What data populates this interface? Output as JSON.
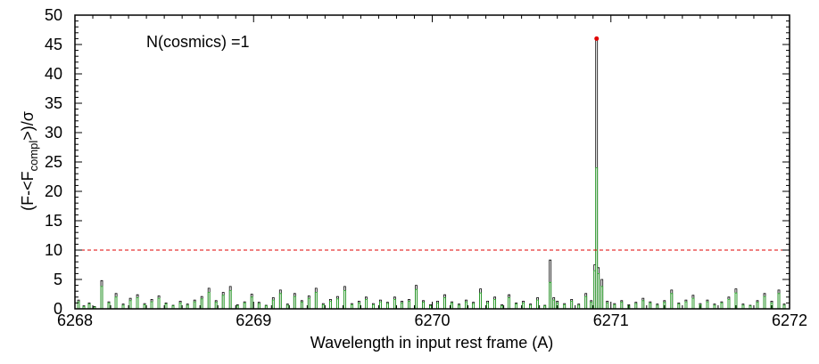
{
  "chart_data": {
    "type": "line",
    "xlabel": "Wavelength in input rest frame (A)",
    "ylabel": "(F-<Fcompl>)/σ",
    "ylabel_parts": {
      "main": "(F-<F",
      "sub": "compl",
      "tail": ">)/σ"
    },
    "xlim": [
      6268,
      6272
    ],
    "ylim": [
      0,
      50
    ],
    "x_ticks": [
      "6268",
      "6269",
      "6270",
      "6271",
      "6272"
    ],
    "y_ticks": [
      "0",
      "5",
      "10",
      "15",
      "20",
      "25",
      "30",
      "35",
      "40",
      "45",
      "50"
    ],
    "annotation": "N(cosmics) =1",
    "threshold": 10,
    "cosmic_point": {
      "x": 6270.92,
      "y": 46
    },
    "series": [
      {
        "color": "#000000",
        "step_width": 0.01,
        "x": [
          6268.02,
          6268.05,
          6268.08,
          6268.11,
          6268.15,
          6268.19,
          6268.23,
          6268.27,
          6268.31,
          6268.35,
          6268.39,
          6268.43,
          6268.47,
          6268.51,
          6268.55,
          6268.59,
          6268.63,
          6268.67,
          6268.71,
          6268.75,
          6268.79,
          6268.83,
          6268.87,
          6268.91,
          6268.95,
          6268.99,
          6269.03,
          6269.07,
          6269.11,
          6269.15,
          6269.19,
          6269.23,
          6269.27,
          6269.31,
          6269.35,
          6269.39,
          6269.43,
          6269.47,
          6269.51,
          6269.55,
          6269.59,
          6269.63,
          6269.67,
          6269.71,
          6269.75,
          6269.79,
          6269.83,
          6269.87,
          6269.91,
          6269.95,
          6269.99,
          6270.03,
          6270.07,
          6270.11,
          6270.15,
          6270.19,
          6270.23,
          6270.27,
          6270.31,
          6270.35,
          6270.39,
          6270.43,
          6270.47,
          6270.51,
          6270.55,
          6270.59,
          6270.63,
          6270.66,
          6270.68,
          6270.7,
          6270.74,
          6270.78,
          6270.82,
          6270.86,
          6270.89,
          6270.91,
          6270.92,
          6270.93,
          6270.95,
          6270.98,
          6271.02,
          6271.06,
          6271.1,
          6271.14,
          6271.18,
          6271.22,
          6271.26,
          6271.3,
          6271.34,
          6271.38,
          6271.42,
          6271.46,
          6271.5,
          6271.54,
          6271.58,
          6271.62,
          6271.66,
          6271.7,
          6271.74,
          6271.78,
          6271.82,
          6271.86,
          6271.9,
          6271.94,
          6271.97
        ],
        "y": [
          1.5,
          0.5,
          1.0,
          0.4,
          4.8,
          1.2,
          2.6,
          0.8,
          1.8,
          2.4,
          0.9,
          1.6,
          2.2,
          1.0,
          0.6,
          1.3,
          0.8,
          1.5,
          2.1,
          3.5,
          1.4,
          2.8,
          3.8,
          0.7,
          1.2,
          2.5,
          1.1,
          0.6,
          1.9,
          3.2,
          0.8,
          2.6,
          1.4,
          2.2,
          3.5,
          0.9,
          1.6,
          2.1,
          3.8,
          0.9,
          1.3,
          2.0,
          0.9,
          1.5,
          1.1,
          2.0,
          1.3,
          1.6,
          4.0,
          1.4,
          0.7,
          1.3,
          2.4,
          1.2,
          0.8,
          1.5,
          1.1,
          3.4,
          1.3,
          2.0,
          0.7,
          2.4,
          1.0,
          1.3,
          0.8,
          1.9,
          0.6,
          8.3,
          1.9,
          1.3,
          0.9,
          1.6,
          0.8,
          2.6,
          1.4,
          7.5,
          46.0,
          7.0,
          5.0,
          1.3,
          0.9,
          1.4,
          0.7,
          1.1,
          1.8,
          1.2,
          0.8,
          1.4,
          3.2,
          1.0,
          1.5,
          2.3,
          0.9,
          1.5,
          0.8,
          1.2,
          2.0,
          3.4,
          0.8,
          0.6,
          1.4,
          2.6,
          1.3,
          3.2,
          0.8
        ]
      },
      {
        "color": "#22aa22",
        "step_width": 0.01,
        "x": [
          6268.02,
          6268.05,
          6268.08,
          6268.11,
          6268.15,
          6268.19,
          6268.23,
          6268.27,
          6268.31,
          6268.35,
          6268.39,
          6268.43,
          6268.47,
          6268.51,
          6268.55,
          6268.59,
          6268.63,
          6268.67,
          6268.71,
          6268.75,
          6268.79,
          6268.83,
          6268.87,
          6268.91,
          6268.95,
          6268.99,
          6269.03,
          6269.07,
          6269.11,
          6269.15,
          6269.19,
          6269.23,
          6269.27,
          6269.31,
          6269.35,
          6269.39,
          6269.43,
          6269.47,
          6269.51,
          6269.55,
          6269.59,
          6269.63,
          6269.67,
          6269.71,
          6269.75,
          6269.79,
          6269.83,
          6269.87,
          6269.91,
          6269.95,
          6269.99,
          6270.03,
          6270.07,
          6270.11,
          6270.15,
          6270.19,
          6270.23,
          6270.27,
          6270.31,
          6270.35,
          6270.39,
          6270.43,
          6270.47,
          6270.51,
          6270.55,
          6270.59,
          6270.63,
          6270.66,
          6270.68,
          6270.7,
          6270.74,
          6270.78,
          6270.82,
          6270.86,
          6270.89,
          6270.91,
          6270.92,
          6270.93,
          6270.95,
          6270.98,
          6271.02,
          6271.06,
          6271.1,
          6271.14,
          6271.18,
          6271.22,
          6271.26,
          6271.3,
          6271.34,
          6271.38,
          6271.42,
          6271.46,
          6271.5,
          6271.54,
          6271.58,
          6271.62,
          6271.66,
          6271.7,
          6271.74,
          6271.78,
          6271.82,
          6271.86,
          6271.9,
          6271.94,
          6271.97
        ],
        "y": [
          1.2,
          0.4,
          0.8,
          0.3,
          3.8,
          1.0,
          2.0,
          0.6,
          1.4,
          1.9,
          0.7,
          1.2,
          1.8,
          0.8,
          0.5,
          1.0,
          0.6,
          1.2,
          1.7,
          2.8,
          1.1,
          2.3,
          3.1,
          0.5,
          1.0,
          2.0,
          0.9,
          0.5,
          1.5,
          2.6,
          0.6,
          2.1,
          1.1,
          1.8,
          2.8,
          0.7,
          1.3,
          1.7,
          3.1,
          0.7,
          1.0,
          1.6,
          0.7,
          1.2,
          0.9,
          1.6,
          1.0,
          1.3,
          3.3,
          1.1,
          0.5,
          1.0,
          1.9,
          1.0,
          0.6,
          1.2,
          0.9,
          2.7,
          1.0,
          1.6,
          0.5,
          1.9,
          0.8,
          1.0,
          0.6,
          1.5,
          0.5,
          4.5,
          1.5,
          1.0,
          0.7,
          1.3,
          0.6,
          2.1,
          1.1,
          6.5,
          24.0,
          6.0,
          3.8,
          1.0,
          0.7,
          1.1,
          0.5,
          0.9,
          1.4,
          1.0,
          0.6,
          1.1,
          2.6,
          0.8,
          1.2,
          1.8,
          0.7,
          1.2,
          0.6,
          1.0,
          1.6,
          2.7,
          0.6,
          0.5,
          1.1,
          2.1,
          1.0,
          2.6,
          0.6
        ]
      }
    ]
  }
}
